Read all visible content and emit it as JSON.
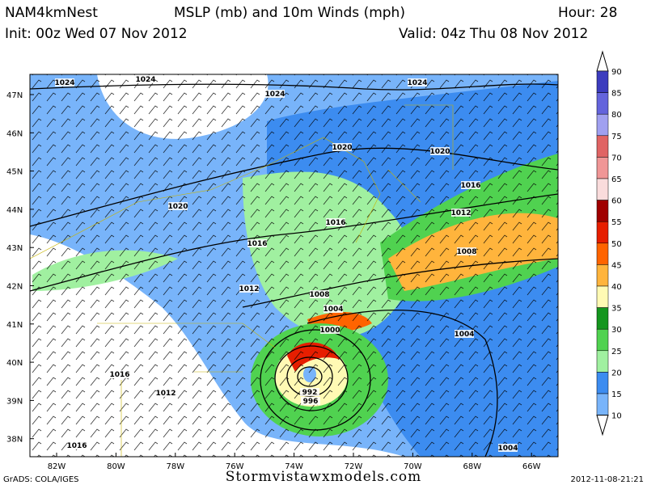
{
  "header": {
    "model": "NAM4kmNest",
    "title": "MSLP (mb) and 10m Winds (mph)",
    "hour": "Hour: 28",
    "init": "Init: 00z Wed 07 Nov 2012",
    "valid": "Valid: 04z Thu 08 Nov 2012"
  },
  "latitudes": [
    "47N",
    "46N",
    "45N",
    "44N",
    "43N",
    "42N",
    "41N",
    "40N",
    "39N",
    "38N"
  ],
  "longitudes": [
    "82W",
    "80W",
    "78W",
    "76W",
    "74W",
    "72W",
    "70W",
    "68W",
    "66W"
  ],
  "colorbar": {
    "labels": [
      90,
      85,
      80,
      75,
      70,
      65,
      60,
      55,
      50,
      45,
      40,
      35,
      30,
      25,
      20,
      15,
      10
    ],
    "colors": [
      "#3c3cbe",
      "#6464dc",
      "#a0a0f0",
      "#e06464",
      "#f09696",
      "#fadcdc",
      "#a00000",
      "#e61e00",
      "#ff6400",
      "#ffb43c",
      "#fffab4",
      "#14961e",
      "#50d250",
      "#a0f0a0",
      "#3c8cf0",
      "#78b4fa"
    ]
  },
  "isobar_labels": [
    "1024",
    "1024",
    "1024",
    "1024",
    "1020",
    "1020",
    "1016",
    "1020",
    "1016",
    "1012",
    "1016",
    "1008",
    "1012",
    "1008",
    "1004",
    "1000",
    "1004",
    "1016",
    "1012",
    "992",
    "996",
    "1016",
    "1004"
  ],
  "footer": {
    "left": "GrADS: COLA/IGES",
    "center": "Stormvistawxmodels.com",
    "right": "2012-11-08-21:21"
  }
}
